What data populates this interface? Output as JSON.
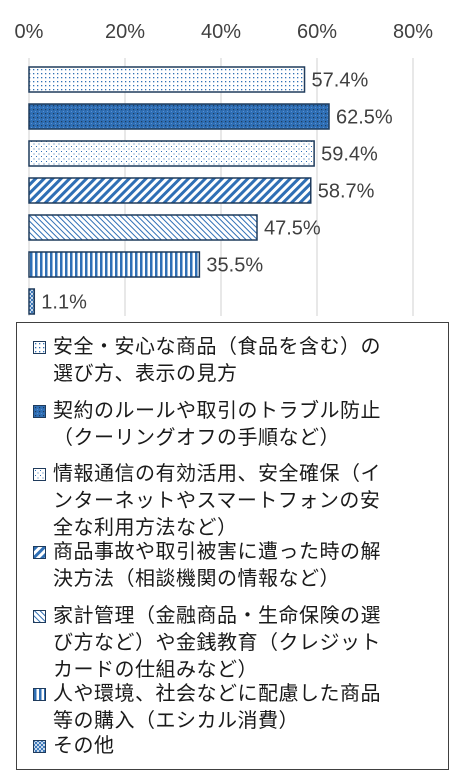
{
  "chart_data": {
    "type": "bar",
    "orientation": "horizontal",
    "xlim": [
      0,
      80
    ],
    "ticks": [
      "0%",
      "20%",
      "40%",
      "60%",
      "80%"
    ],
    "grid": true,
    "legend_placement": "bottom",
    "categories": [
      "安全・安心な商品（食品を含む）の選び方、表示の見方",
      "契約のルールや取引のトラブル防止（クーリングオフの手順など）",
      "情報通信の有効活用、安全確保（インターネットやスマートフォンの安全な利用方法など）",
      "商品事故や取引被害に遭った時の解決方法（相談機関の情報など）",
      "家計管理（金融商品・生命保険の選び方など）や金銭教育（クレジットカードの仕組みなど）",
      "人や環境、社会などに配慮した商品等の購入（エシカル消費）",
      "その他"
    ],
    "values": [
      57.4,
      62.5,
      59.4,
      58.7,
      47.5,
      35.5,
      1.1
    ],
    "value_labels": [
      "57.4%",
      "62.5%",
      "59.4%",
      "58.7%",
      "47.5%",
      "35.5%",
      "1.1%"
    ],
    "patterns": [
      "dots",
      "solid-dots",
      "dense-dots",
      "diagonal-thick",
      "diagonal-thin",
      "vertical",
      "cross"
    ]
  },
  "legend": {
    "items": [
      {
        "lines": [
          "安全・安心な商品（食品を含む）の",
          "選び方、表示の見方"
        ]
      },
      {
        "lines": [
          "契約のルールや取引のトラブル防止",
          "（クーリングオフの手順など）"
        ]
      },
      {
        "lines": [
          "情報通信の有効活用、安全確保（イ",
          "ンターネットやスマートフォンの安",
          "全な利用方法など）"
        ]
      },
      {
        "lines": [
          "商品事故や取引被害に遭った時の解",
          "決方法（相談機関の情報など）"
        ]
      },
      {
        "lines": [
          "家計管理（金融商品・生命保険の選",
          "び方など）や金銭教育（クレジット",
          "カードの仕組みなど）"
        ]
      },
      {
        "lines": [
          "人や環境、社会などに配慮した商品",
          "等の購入（エシカル消費）"
        ]
      },
      {
        "lines": [
          "その他"
        ]
      }
    ]
  },
  "colors": {
    "border": "#1f3b5c",
    "accent": "#2f6fb5",
    "grid": "#d0d0d0",
    "text": "#404040"
  }
}
